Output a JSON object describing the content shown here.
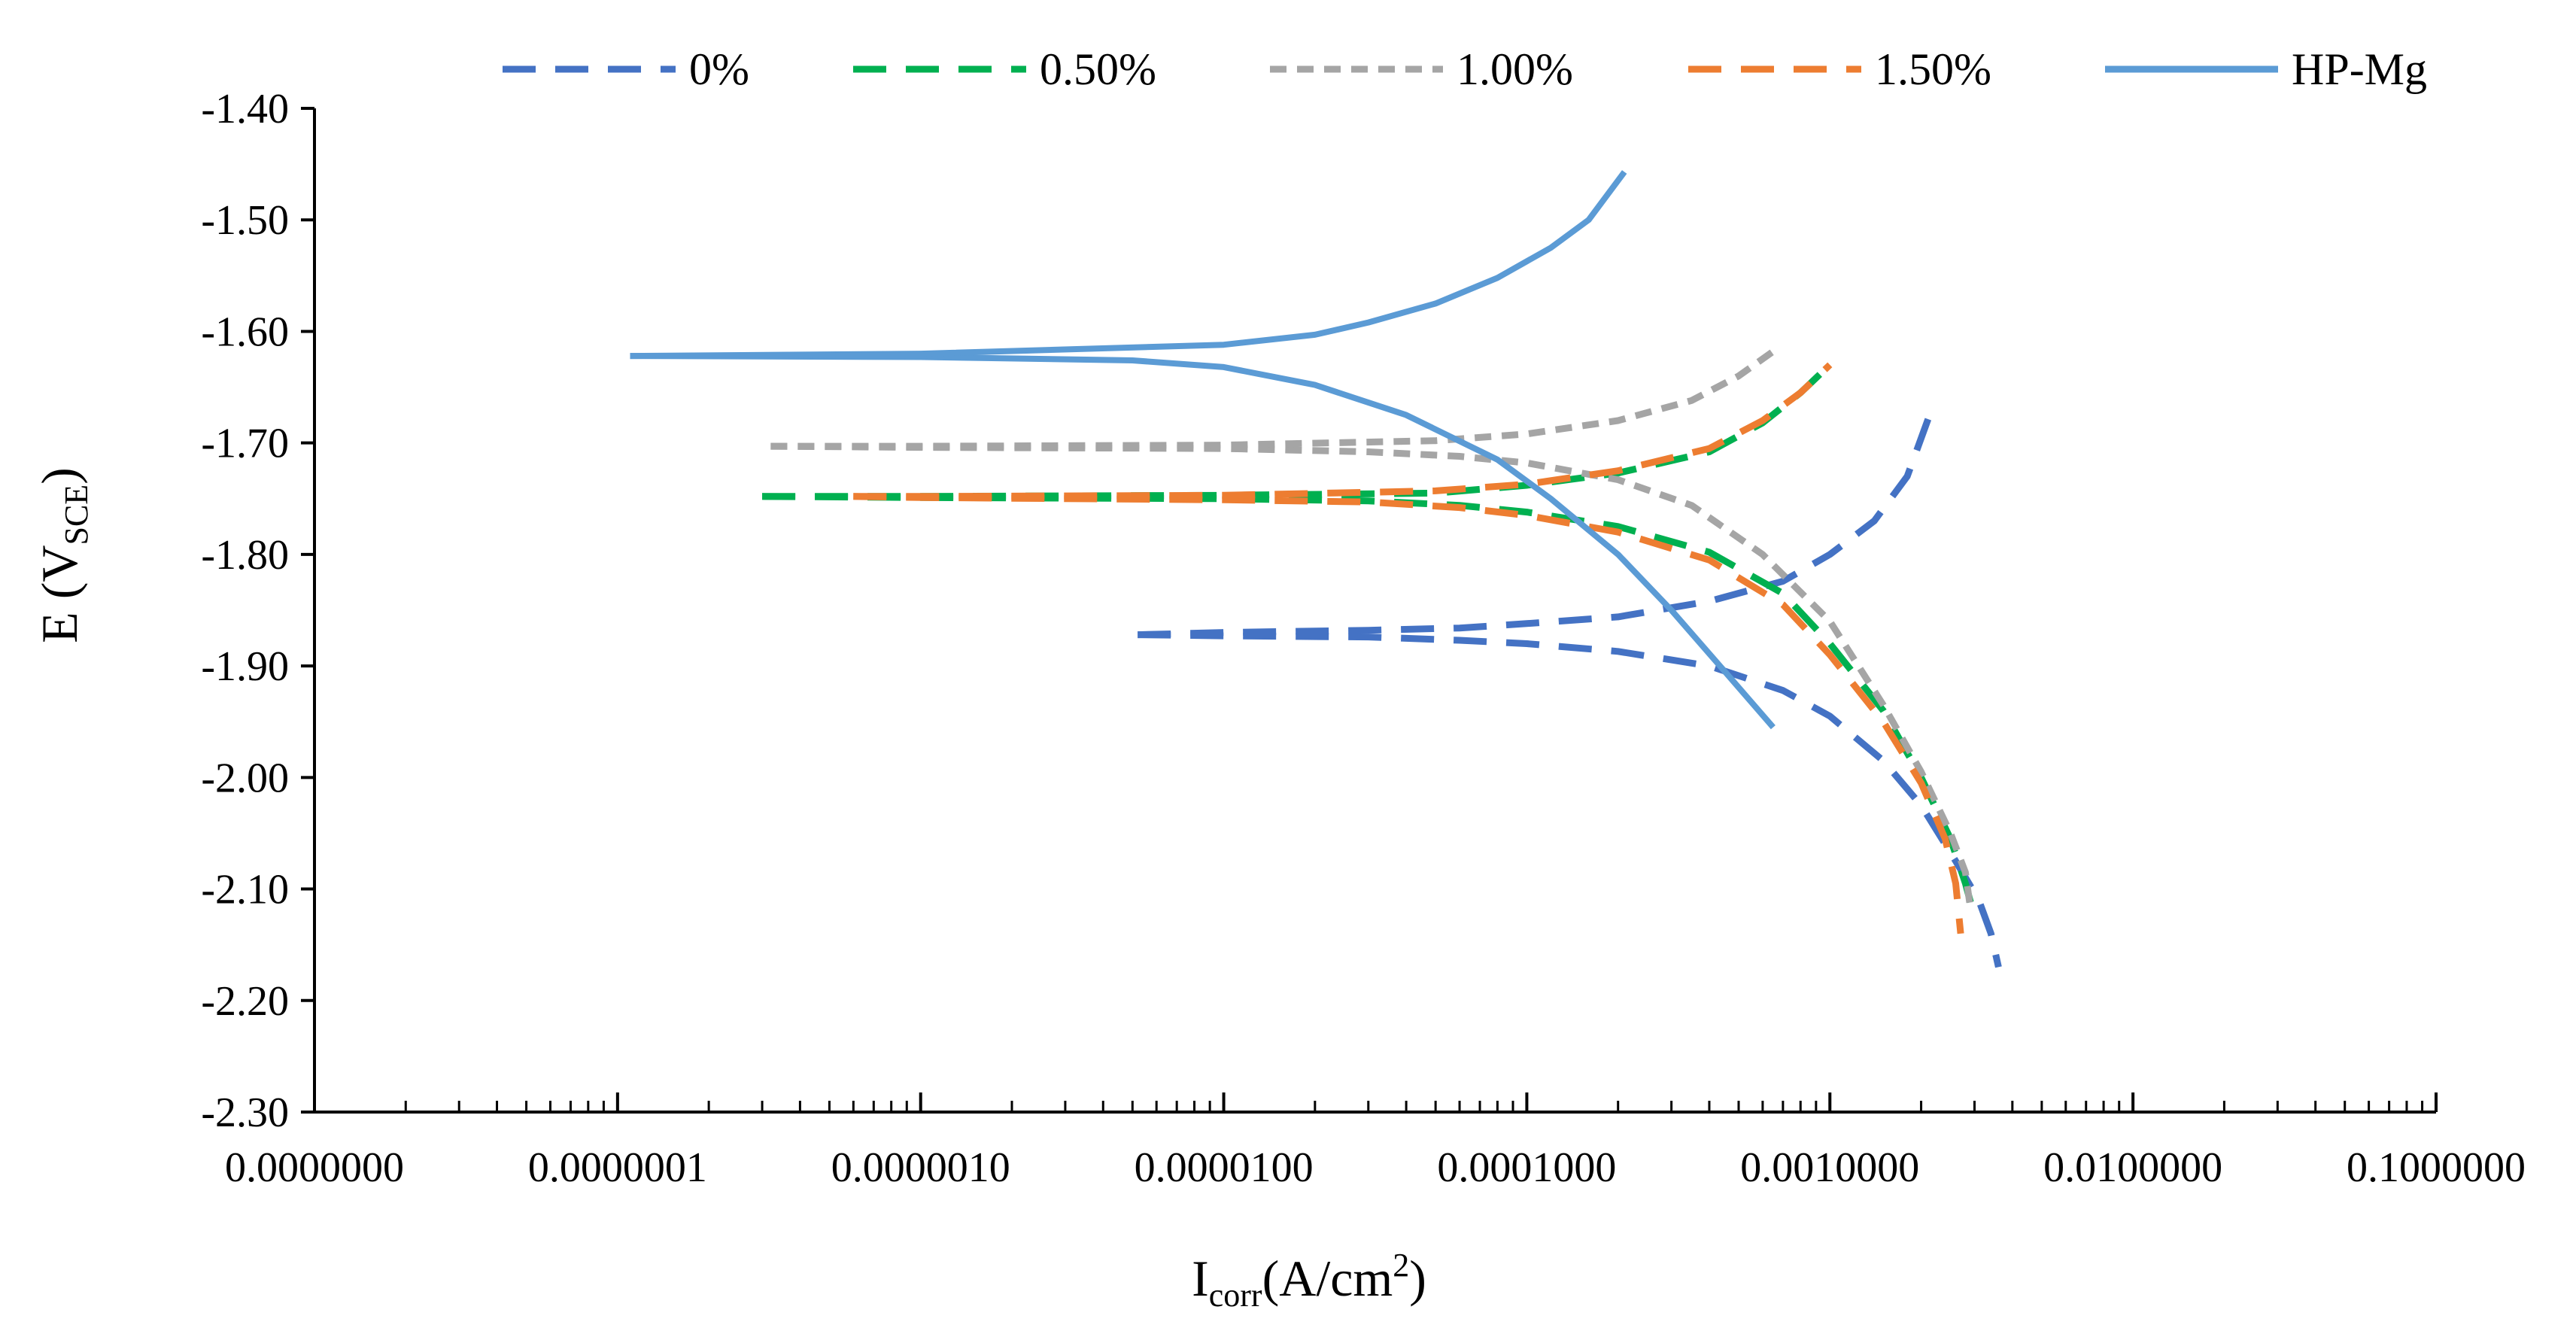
{
  "chart_data": {
    "type": "line",
    "title": "",
    "xlabel": {
      "main": "I",
      "sub": "corr",
      "rest": "(A/cm",
      "sup": "2",
      "close": ")"
    },
    "ylabel": {
      "main": "E (V",
      "sub": "SCE",
      "close": ")"
    },
    "x_scale": "log",
    "xlim": [
      1e-08,
      0.1
    ],
    "ylim": [
      -2.3,
      -1.4
    ],
    "x_tick_values": [
      1e-08,
      1e-07,
      1e-06,
      1e-05,
      0.0001,
      0.001,
      0.01,
      0.1
    ],
    "x_tick_labels": [
      "0.0000000",
      "0.0000001",
      "0.0000010",
      "0.0000100",
      "0.0001000",
      "0.0010000",
      "0.0100000",
      "0.1000000"
    ],
    "y_tick_values": [
      -1.4,
      -1.5,
      -1.6,
      -1.7,
      -1.8,
      -1.9,
      -2.0,
      -2.1,
      -2.2,
      -2.3
    ],
    "y_tick_labels": [
      "-1.40",
      "-1.50",
      "-1.60",
      "-1.70",
      "-1.80",
      "-1.90",
      "-2.00",
      "-2.10",
      "-2.20",
      "-2.30"
    ],
    "grid": false,
    "legend_position": "top",
    "series": [
      {
        "name": "0%",
        "color": "#4472C4",
        "dash": "long-dash",
        "anodic": [
          [
            5.2e-06,
            -1.872
          ],
          [
            1e-05,
            -1.87
          ],
          [
            3e-05,
            -1.868
          ],
          [
            6e-05,
            -1.866
          ],
          [
            0.0001,
            -1.862
          ],
          [
            0.0002,
            -1.856
          ],
          [
            0.0004,
            -1.842
          ],
          [
            0.0007,
            -1.824
          ],
          [
            0.001,
            -1.8
          ],
          [
            0.0014,
            -1.77
          ],
          [
            0.0018,
            -1.73
          ],
          [
            0.0022,
            -1.665
          ]
        ],
        "cathodic": [
          [
            5.2e-06,
            -1.872
          ],
          [
            1e-05,
            -1.873
          ],
          [
            3e-05,
            -1.874
          ],
          [
            6e-05,
            -1.877
          ],
          [
            0.0001,
            -1.88
          ],
          [
            0.0002,
            -1.887
          ],
          [
            0.0004,
            -1.9
          ],
          [
            0.0007,
            -1.922
          ],
          [
            0.001,
            -1.945
          ],
          [
            0.0015,
            -1.985
          ],
          [
            0.002,
            -2.025
          ],
          [
            0.0026,
            -2.075
          ],
          [
            0.0031,
            -2.11
          ],
          [
            0.0034,
            -2.14
          ],
          [
            0.0036,
            -2.17
          ]
        ]
      },
      {
        "name": "0.50%",
        "color": "#00B050",
        "dash": "long-dash",
        "anodic": [
          [
            3e-07,
            -1.748
          ],
          [
            1e-06,
            -1.748
          ],
          [
            1e-05,
            -1.747
          ],
          [
            5e-05,
            -1.745
          ],
          [
            0.0001,
            -1.738
          ],
          [
            0.0002,
            -1.727
          ],
          [
            0.0004,
            -1.708
          ],
          [
            0.0006,
            -1.682
          ],
          [
            0.0008,
            -1.655
          ],
          [
            0.001,
            -1.63
          ]
        ],
        "cathodic": [
          [
            3e-07,
            -1.748
          ],
          [
            1e-06,
            -1.749
          ],
          [
            1e-05,
            -1.75
          ],
          [
            3e-05,
            -1.752
          ],
          [
            6e-05,
            -1.756
          ],
          [
            0.0001,
            -1.762
          ],
          [
            0.0002,
            -1.775
          ],
          [
            0.0004,
            -1.798
          ],
          [
            0.0007,
            -1.835
          ],
          [
            0.001,
            -1.88
          ],
          [
            0.0015,
            -1.94
          ],
          [
            0.002,
            -2.0
          ],
          [
            0.0025,
            -2.055
          ],
          [
            0.0028,
            -2.095
          ],
          [
            0.003,
            -2.125
          ]
        ]
      },
      {
        "name": "1.00%",
        "color": "#A5A5A5",
        "dash": "short-dash",
        "anodic": [
          [
            3.2e-07,
            -1.703
          ],
          [
            1e-06,
            -1.703
          ],
          [
            1e-05,
            -1.702
          ],
          [
            5e-05,
            -1.698
          ],
          [
            0.0001,
            -1.692
          ],
          [
            0.0002,
            -1.68
          ],
          [
            0.00035,
            -1.662
          ],
          [
            0.0005,
            -1.64
          ],
          [
            0.00065,
            -1.618
          ]
        ],
        "cathodic": [
          [
            3.2e-07,
            -1.703
          ],
          [
            1e-06,
            -1.704
          ],
          [
            1e-05,
            -1.705
          ],
          [
            3e-05,
            -1.708
          ],
          [
            6e-05,
            -1.712
          ],
          [
            0.0001,
            -1.718
          ],
          [
            0.0002,
            -1.733
          ],
          [
            0.00035,
            -1.756
          ],
          [
            0.0006,
            -1.8
          ],
          [
            0.001,
            -1.86
          ],
          [
            0.0015,
            -1.935
          ],
          [
            0.002,
            -1.995
          ],
          [
            0.0025,
            -2.05
          ],
          [
            0.0028,
            -2.085
          ],
          [
            0.0029,
            -2.115
          ]
        ]
      },
      {
        "name": "1.50%",
        "color": "#ED7D31",
        "dash": "long-dash",
        "anodic": [
          [
            6e-07,
            -1.748
          ],
          [
            1e-06,
            -1.748
          ],
          [
            1e-05,
            -1.747
          ],
          [
            5e-05,
            -1.743
          ],
          [
            0.0001,
            -1.737
          ],
          [
            0.0002,
            -1.725
          ],
          [
            0.0004,
            -1.705
          ],
          [
            0.0006,
            -1.68
          ],
          [
            0.0008,
            -1.655
          ],
          [
            0.001,
            -1.63
          ]
        ],
        "cathodic": [
          [
            6e-07,
            -1.748
          ],
          [
            1e-06,
            -1.749
          ],
          [
            1e-05,
            -1.751
          ],
          [
            3e-05,
            -1.753
          ],
          [
            6e-05,
            -1.758
          ],
          [
            0.0001,
            -1.765
          ],
          [
            0.0002,
            -1.78
          ],
          [
            0.0004,
            -1.805
          ],
          [
            0.0007,
            -1.845
          ],
          [
            0.001,
            -1.89
          ],
          [
            0.0015,
            -1.95
          ],
          [
            0.002,
            -2.005
          ],
          [
            0.0024,
            -2.055
          ],
          [
            0.0026,
            -2.095
          ],
          [
            0.0027,
            -2.14
          ]
        ]
      },
      {
        "name": "HP-Mg",
        "color": "#5B9BD5",
        "dash": "solid",
        "anodic": [
          [
            1.1e-07,
            -1.622
          ],
          [
            1e-06,
            -1.62
          ],
          [
            1e-05,
            -1.612
          ],
          [
            2e-05,
            -1.603
          ],
          [
            3e-05,
            -1.592
          ],
          [
            5e-05,
            -1.575
          ],
          [
            8e-05,
            -1.552
          ],
          [
            0.00012,
            -1.525
          ],
          [
            0.00016,
            -1.5
          ],
          [
            0.00021,
            -1.457
          ]
        ],
        "cathodic": [
          [
            1.1e-07,
            -1.622
          ],
          [
            1e-06,
            -1.623
          ],
          [
            5e-06,
            -1.626
          ],
          [
            1e-05,
            -1.632
          ],
          [
            2e-05,
            -1.648
          ],
          [
            4e-05,
            -1.675
          ],
          [
            8e-05,
            -1.715
          ],
          [
            0.00012,
            -1.75
          ],
          [
            0.0002,
            -1.8
          ],
          [
            0.0003,
            -1.85
          ],
          [
            0.00045,
            -1.905
          ],
          [
            0.00065,
            -1.955
          ]
        ]
      }
    ]
  }
}
